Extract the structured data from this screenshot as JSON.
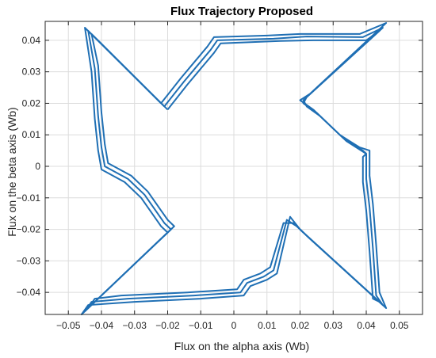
{
  "chart_data": {
    "type": "line",
    "title": "Flux Trajectory Proposed",
    "xlabel": "Flux on the alpha axis (Wb)",
    "ylabel": "Flux on the beta axis (Wb)",
    "xlim": [
      -0.057,
      0.057
    ],
    "ylim": [
      -0.047,
      0.046
    ],
    "grid": true,
    "x_ticks": [
      -0.05,
      -0.04,
      -0.03,
      -0.02,
      -0.01,
      0,
      0.01,
      0.02,
      0.03,
      0.04,
      0.05
    ],
    "x_tick_labels": [
      "−0.05",
      "−0.04",
      "−0.03",
      "−0.02",
      "−0.01",
      "0",
      "0.01",
      "0.02",
      "0.03",
      "0.04",
      "0.05"
    ],
    "y_ticks": [
      -0.04,
      -0.03,
      -0.02,
      -0.01,
      0,
      0.01,
      0.02,
      0.03,
      0.04
    ],
    "y_tick_labels": [
      "−0.04",
      "−0.03",
      "−0.02",
      "−0.01",
      "0",
      "0.01",
      "0.02",
      "0.03",
      "0.04"
    ],
    "series": [
      {
        "color": "#1f6fb4",
        "points": [
          [
            -0.022,
            0.02
          ],
          [
            -0.019,
            0.024
          ],
          [
            -0.016,
            0.028
          ],
          [
            -0.012,
            0.033
          ],
          [
            -0.008,
            0.038
          ],
          [
            -0.006,
            0.041
          ],
          [
            0.01,
            0.0415
          ],
          [
            0.02,
            0.042
          ],
          [
            0.038,
            0.042
          ],
          [
            0.046,
            0.0455
          ],
          [
            0.023,
            0.023
          ],
          [
            0.02,
            0.021
          ],
          [
            0.024,
            0.018
          ],
          [
            0.026,
            0.016
          ],
          [
            0.029,
            0.013
          ],
          [
            0.032,
            0.01
          ],
          [
            0.035,
            0.008
          ],
          [
            0.038,
            0.006
          ],
          [
            0.041,
            0.005
          ],
          [
            0.041,
            -0.003
          ],
          [
            0.042,
            -0.012
          ],
          [
            0.043,
            -0.025
          ],
          [
            0.044,
            -0.04
          ],
          [
            0.046,
            -0.045
          ],
          [
            0.023,
            -0.023
          ],
          [
            0.02,
            -0.02
          ],
          [
            0.017,
            -0.016
          ],
          [
            0.013,
            -0.034
          ],
          [
            0.01,
            -0.036
          ],
          [
            0.005,
            -0.038
          ],
          [
            0.003,
            -0.041
          ],
          [
            -0.01,
            -0.042
          ],
          [
            -0.03,
            -0.043
          ],
          [
            -0.044,
            -0.044
          ],
          [
            -0.046,
            -0.047
          ],
          [
            -0.022,
            -0.023
          ],
          [
            -0.02,
            -0.021
          ],
          [
            -0.022,
            -0.019
          ],
          [
            -0.024,
            -0.016
          ],
          [
            -0.028,
            -0.01
          ],
          [
            -0.033,
            -0.005
          ],
          [
            -0.04,
            -0.001
          ],
          [
            -0.041,
            0.005
          ],
          [
            -0.042,
            0.015
          ],
          [
            -0.043,
            0.03
          ],
          [
            -0.045,
            0.044
          ],
          [
            -0.022,
            0.02
          ]
        ]
      },
      {
        "color": "#1f6fb4",
        "points": [
          [
            -0.021,
            0.019
          ],
          [
            -0.018,
            0.023
          ],
          [
            -0.015,
            0.027
          ],
          [
            -0.011,
            0.032
          ],
          [
            -0.007,
            0.037
          ],
          [
            -0.005,
            0.04
          ],
          [
            0.012,
            0.0405
          ],
          [
            0.022,
            0.0412
          ],
          [
            0.039,
            0.041
          ],
          [
            0.045,
            0.044
          ],
          [
            0.022,
            0.022
          ],
          [
            0.021,
            0.02
          ],
          [
            0.025,
            0.017
          ],
          [
            0.027,
            0.015
          ],
          [
            0.03,
            0.012
          ],
          [
            0.033,
            0.009
          ],
          [
            0.036,
            0.007
          ],
          [
            0.039,
            0.005
          ],
          [
            0.04,
            0.004
          ],
          [
            0.04,
            -0.004
          ],
          [
            0.041,
            -0.013
          ],
          [
            0.042,
            -0.026
          ],
          [
            0.043,
            -0.041
          ],
          [
            0.045,
            -0.044
          ],
          [
            0.022,
            -0.022
          ],
          [
            0.019,
            -0.019
          ],
          [
            0.016,
            -0.017
          ],
          [
            0.012,
            -0.033
          ],
          [
            0.009,
            -0.035
          ],
          [
            0.004,
            -0.037
          ],
          [
            0.002,
            -0.04
          ],
          [
            -0.012,
            -0.041
          ],
          [
            -0.032,
            -0.042
          ],
          [
            -0.043,
            -0.043
          ],
          [
            -0.045,
            -0.046
          ],
          [
            -0.021,
            -0.022
          ],
          [
            -0.019,
            -0.02
          ],
          [
            -0.021,
            -0.018
          ],
          [
            -0.023,
            -0.015
          ],
          [
            -0.027,
            -0.009
          ],
          [
            -0.032,
            -0.004
          ],
          [
            -0.039,
            0.0
          ],
          [
            -0.04,
            0.006
          ],
          [
            -0.041,
            0.016
          ],
          [
            -0.042,
            0.031
          ],
          [
            -0.044,
            0.043
          ],
          [
            -0.021,
            0.019
          ]
        ]
      },
      {
        "color": "#1f6fb4",
        "points": [
          [
            -0.02,
            0.018
          ],
          [
            -0.017,
            0.022
          ],
          [
            -0.014,
            0.026
          ],
          [
            -0.01,
            0.031
          ],
          [
            -0.006,
            0.036
          ],
          [
            -0.004,
            0.039
          ],
          [
            0.014,
            0.0398
          ],
          [
            0.024,
            0.04
          ],
          [
            0.04,
            0.04
          ],
          [
            0.044,
            0.043
          ],
          [
            0.021,
            0.021
          ],
          [
            0.022,
            0.019
          ],
          [
            0.026,
            0.016
          ],
          [
            0.028,
            0.014
          ],
          [
            0.031,
            0.011
          ],
          [
            0.034,
            0.008
          ],
          [
            0.037,
            0.006
          ],
          [
            0.04,
            0.004
          ],
          [
            0.039,
            0.003
          ],
          [
            0.039,
            -0.005
          ],
          [
            0.04,
            -0.014
          ],
          [
            0.041,
            -0.027
          ],
          [
            0.042,
            -0.042
          ],
          [
            0.044,
            -0.043
          ],
          [
            0.021,
            -0.021
          ],
          [
            0.018,
            -0.018
          ],
          [
            0.015,
            -0.018
          ],
          [
            0.011,
            -0.032
          ],
          [
            0.008,
            -0.034
          ],
          [
            0.003,
            -0.036
          ],
          [
            0.001,
            -0.039
          ],
          [
            -0.014,
            -0.04
          ],
          [
            -0.034,
            -0.041
          ],
          [
            -0.042,
            -0.042
          ],
          [
            -0.044,
            -0.045
          ],
          [
            -0.02,
            -0.021
          ],
          [
            -0.018,
            -0.019
          ],
          [
            -0.02,
            -0.017
          ],
          [
            -0.022,
            -0.014
          ],
          [
            -0.026,
            -0.008
          ],
          [
            -0.031,
            -0.003
          ],
          [
            -0.038,
            0.001
          ],
          [
            -0.039,
            0.007
          ],
          [
            -0.04,
            0.017
          ],
          [
            -0.041,
            0.032
          ],
          [
            -0.043,
            0.042
          ],
          [
            -0.02,
            0.018
          ]
        ]
      }
    ]
  }
}
